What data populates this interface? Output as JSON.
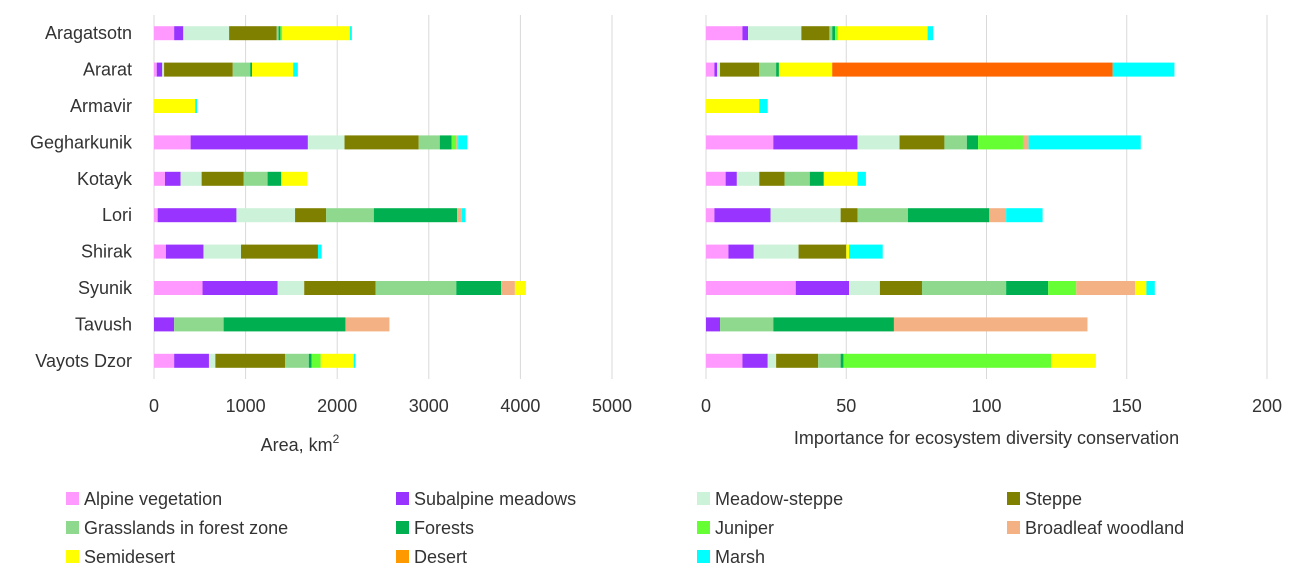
{
  "chart_data": [
    {
      "type": "bar",
      "orientation": "horizontal",
      "stacked": true,
      "xlabel": "Area, km",
      "xlabel_sup": "2",
      "xlim": [
        0,
        5000
      ],
      "xticks": [
        "0",
        "1000",
        "2000",
        "3000",
        "4000",
        "5000"
      ],
      "grid": "vertical",
      "categories": [
        "Aragatsotn",
        "Ararat",
        "Armavir",
        "Gegharkunik",
        "Kotayk",
        "Lori",
        "Shirak",
        "Syunik",
        "Tavush",
        "Vayots Dzor"
      ],
      "series": [
        {
          "name": "Alpine vegetation",
          "color": "#ff99ff",
          "values": [
            220,
            30,
            0,
            400,
            120,
            40,
            130,
            530,
            0,
            220
          ]
        },
        {
          "name": "Subalpine meadows",
          "color": "#9933ff",
          "values": [
            100,
            60,
            0,
            1280,
            170,
            860,
            410,
            820,
            220,
            380
          ]
        },
        {
          "name": "Meadow-steppe",
          "color": "#ccf2d9",
          "values": [
            500,
            20,
            0,
            400,
            230,
            640,
            410,
            290,
            0,
            70
          ]
        },
        {
          "name": "Steppe",
          "color": "#808000",
          "values": [
            520,
            750,
            0,
            810,
            460,
            340,
            840,
            780,
            0,
            760
          ]
        },
        {
          "name": "Grasslands in forest zone",
          "color": "#8fd98f",
          "values": [
            20,
            190,
            0,
            230,
            260,
            520,
            0,
            880,
            540,
            260
          ]
        },
        {
          "name": "Forests",
          "color": "#00b050",
          "values": [
            20,
            20,
            0,
            130,
            150,
            910,
            0,
            490,
            1330,
            30
          ]
        },
        {
          "name": "Juniper",
          "color": "#66ff33",
          "values": [
            20,
            0,
            0,
            50,
            0,
            0,
            0,
            0,
            0,
            100
          ]
        },
        {
          "name": "Broadleaf woodland",
          "color": "#f4b183",
          "values": [
            0,
            0,
            0,
            20,
            0,
            50,
            0,
            150,
            480,
            0
          ]
        },
        {
          "name": "Semidesert",
          "color": "#ffff00",
          "values": [
            740,
            450,
            450,
            0,
            280,
            0,
            0,
            120,
            0,
            360
          ]
        },
        {
          "name": "Desert",
          "color": "#ff9900",
          "values": [
            0,
            0,
            0,
            0,
            0,
            0,
            0,
            0,
            0,
            0
          ]
        },
        {
          "name": "Marsh",
          "color": "#00ffff",
          "values": [
            20,
            50,
            20,
            100,
            0,
            40,
            40,
            0,
            0,
            20
          ]
        }
      ]
    },
    {
      "type": "bar",
      "orientation": "horizontal",
      "stacked": true,
      "xlabel": "Importance for ecosystem diversity conservation",
      "xlim": [
        0,
        200
      ],
      "xticks": [
        "0",
        "50",
        "100",
        "150",
        "200"
      ],
      "grid": "vertical",
      "categories": [
        "Aragatsotn",
        "Ararat",
        "Armavir",
        "Gegharkunik",
        "Kotayk",
        "Lori",
        "Shirak",
        "Syunik",
        "Tavush",
        "Vayots Dzor"
      ],
      "series": [
        {
          "name": "Alpine vegetation",
          "color": "#ff99ff",
          "values": [
            13,
            3,
            0,
            24,
            7,
            3,
            8,
            32,
            0,
            13
          ]
        },
        {
          "name": "Subalpine meadows",
          "color": "#9933ff",
          "values": [
            2,
            1,
            0,
            30,
            4,
            20,
            9,
            19,
            5,
            9
          ]
        },
        {
          "name": "Meadow-steppe",
          "color": "#ccf2d9",
          "values": [
            19,
            1,
            0,
            15,
            8,
            25,
            16,
            11,
            0,
            3
          ]
        },
        {
          "name": "Steppe",
          "color": "#808000",
          "values": [
            10,
            14,
            0,
            16,
            9,
            6,
            17,
            15,
            0,
            15
          ]
        },
        {
          "name": "Grasslands in forest zone",
          "color": "#8fd98f",
          "values": [
            1,
            6,
            0,
            8,
            9,
            18,
            0,
            30,
            19,
            8
          ]
        },
        {
          "name": "Forests",
          "color": "#00b050",
          "values": [
            1,
            1,
            0,
            4,
            5,
            29,
            0,
            15,
            43,
            1
          ]
        },
        {
          "name": "Juniper",
          "color": "#66ff33",
          "values": [
            1,
            0,
            0,
            16,
            0,
            0,
            0,
            10,
            0,
            74
          ]
        },
        {
          "name": "Broadleaf woodland",
          "color": "#f4b183",
          "values": [
            0,
            0,
            0,
            2,
            0,
            6,
            0,
            21,
            69,
            0
          ]
        },
        {
          "name": "Semidesert",
          "color": "#ffff00",
          "values": [
            32,
            19,
            19,
            0,
            12,
            0,
            1,
            4,
            0,
            16
          ]
        },
        {
          "name": "Desert",
          "color": "#ff6600",
          "values": [
            0,
            100,
            0,
            0,
            0,
            0,
            0,
            0,
            0,
            0
          ]
        },
        {
          "name": "Marsh",
          "color": "#00ffff",
          "values": [
            2,
            22,
            3,
            40,
            3,
            13,
            12,
            3,
            0,
            0
          ]
        }
      ]
    }
  ],
  "legend": [
    {
      "label": "Alpine vegetation",
      "color": "#ff99ff"
    },
    {
      "label": "Subalpine meadows",
      "color": "#9933ff"
    },
    {
      "label": "Meadow-steppe",
      "color": "#ccf2d9"
    },
    {
      "label": "Steppe",
      "color": "#808000"
    },
    {
      "label": "Grasslands in forest zone",
      "color": "#8fd98f"
    },
    {
      "label": "Forests",
      "color": "#00b050"
    },
    {
      "label": "Juniper",
      "color": "#66ff33"
    },
    {
      "label": "Broadleaf woodland",
      "color": "#f4b183"
    },
    {
      "label": "Semidesert",
      "color": "#ffff00"
    },
    {
      "label": "Desert",
      "color": "#ff9900"
    },
    {
      "label": "Marsh",
      "color": "#00ffff"
    }
  ]
}
